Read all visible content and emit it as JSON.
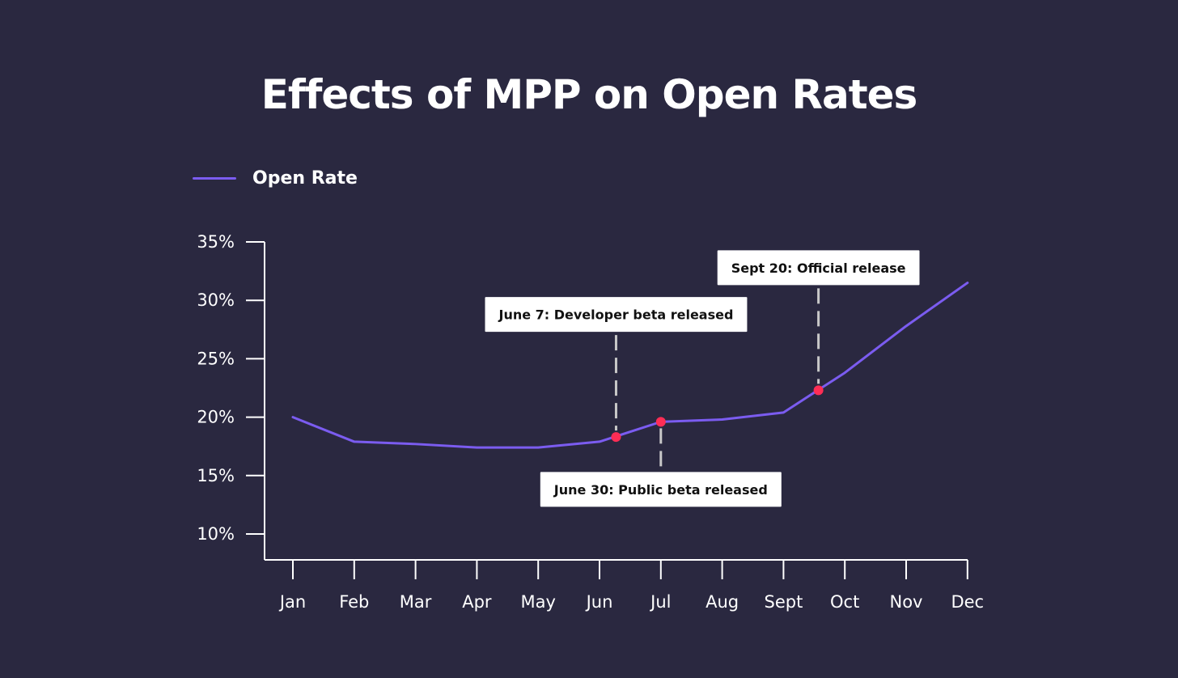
{
  "colors": {
    "background": "#2a2840",
    "line": "#7b5cf0",
    "marker": "#ff2d55",
    "axis": "#ffffff",
    "guide": "#c8c8c8",
    "annotation_box": "#ffffff",
    "annotation_text": "#111111"
  },
  "chart_data": {
    "type": "line",
    "title": "Effects of MPP on Open Rates",
    "xlabel": "",
    "ylabel": "",
    "legend": {
      "position": "top-left",
      "entries": [
        "Open Rate"
      ]
    },
    "grid": false,
    "categories": [
      "Jan",
      "Feb",
      "Mar",
      "Apr",
      "May",
      "Jun",
      "Jul",
      "Aug",
      "Sept",
      "Oct",
      "Nov",
      "Dec"
    ],
    "y_ticks": [
      "10%",
      "15%",
      "20%",
      "25%",
      "30%",
      "35%"
    ],
    "ylim": [
      10,
      35
    ],
    "series": [
      {
        "name": "Open Rate",
        "x": [
          0,
          1,
          2,
          3,
          4,
          5,
          6,
          7,
          8,
          9,
          10,
          11
        ],
        "values": [
          20.0,
          17.9,
          17.7,
          17.4,
          17.4,
          17.9,
          19.6,
          19.8,
          20.4,
          23.8,
          27.8,
          31.5
        ]
      }
    ],
    "annotations": [
      {
        "label": "June 7: Developer beta released",
        "x": 5.27,
        "y": 18.3,
        "placement": "above"
      },
      {
        "label": "June 30: Public beta released",
        "x": 6.0,
        "y": 19.6,
        "placement": "below"
      },
      {
        "label": "Sept 20: Official release",
        "x": 8.57,
        "y": 22.3,
        "placement": "above"
      }
    ]
  }
}
